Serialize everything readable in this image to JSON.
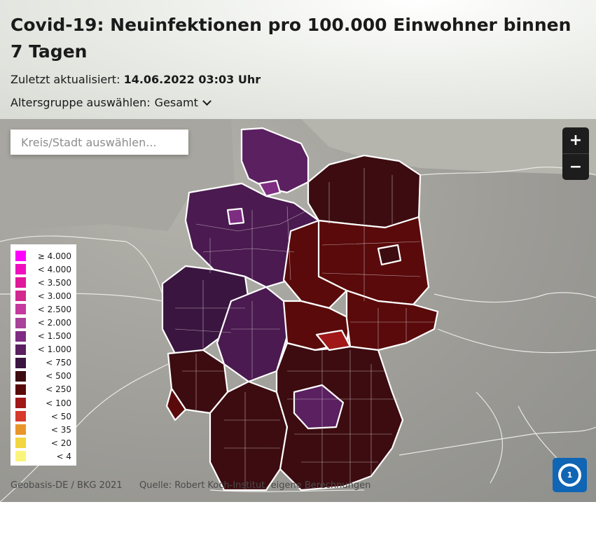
{
  "header": {
    "title": "Covid-19: Neuinfektionen pro 100.000 Einwohner binnen 7 Tagen",
    "updated_label": "Zuletzt aktualisiert:",
    "updated_value": "14.06.2022 03:03 Uhr",
    "age_label": "Altersgruppe auswählen:",
    "age_value": "Gesamt"
  },
  "search": {
    "placeholder": "Kreis/Stadt auswählen..."
  },
  "zoom": {
    "in_label": "+",
    "out_label": "−"
  },
  "legend": [
    {
      "label": "≥ 4.000",
      "color": "#ff00ff"
    },
    {
      "label": "< 4.000",
      "color": "#f00fbe"
    },
    {
      "label": "< 3.500",
      "color": "#e0189a"
    },
    {
      "label": "< 3.000",
      "color": "#d1298f"
    },
    {
      "label": "< 2.500",
      "color": "#c43a9e"
    },
    {
      "label": "< 2.000",
      "color": "#a8429a"
    },
    {
      "label": "< 1.500",
      "color": "#7e2d82"
    },
    {
      "label": "< 1.000",
      "color": "#5a2060"
    },
    {
      "label": "< 750",
      "color": "#3a1540"
    },
    {
      "label": "< 500",
      "color": "#3c0c10"
    },
    {
      "label": "< 250",
      "color": "#5a0a0a"
    },
    {
      "label": "< 100",
      "color": "#a01818"
    },
    {
      "label": "< 50",
      "color": "#d63a2a"
    },
    {
      "label": "< 35",
      "color": "#e8962a"
    },
    {
      "label": "< 20",
      "color": "#f2d640"
    },
    {
      "label": "< 4",
      "color": "#faf57a"
    }
  ],
  "credits": {
    "basemap": "Geobasis-DE / BKG 2021",
    "source": "Quelle: Robert Koch-Institut, eigene Berechnungen"
  },
  "logo": {
    "text": "1"
  }
}
